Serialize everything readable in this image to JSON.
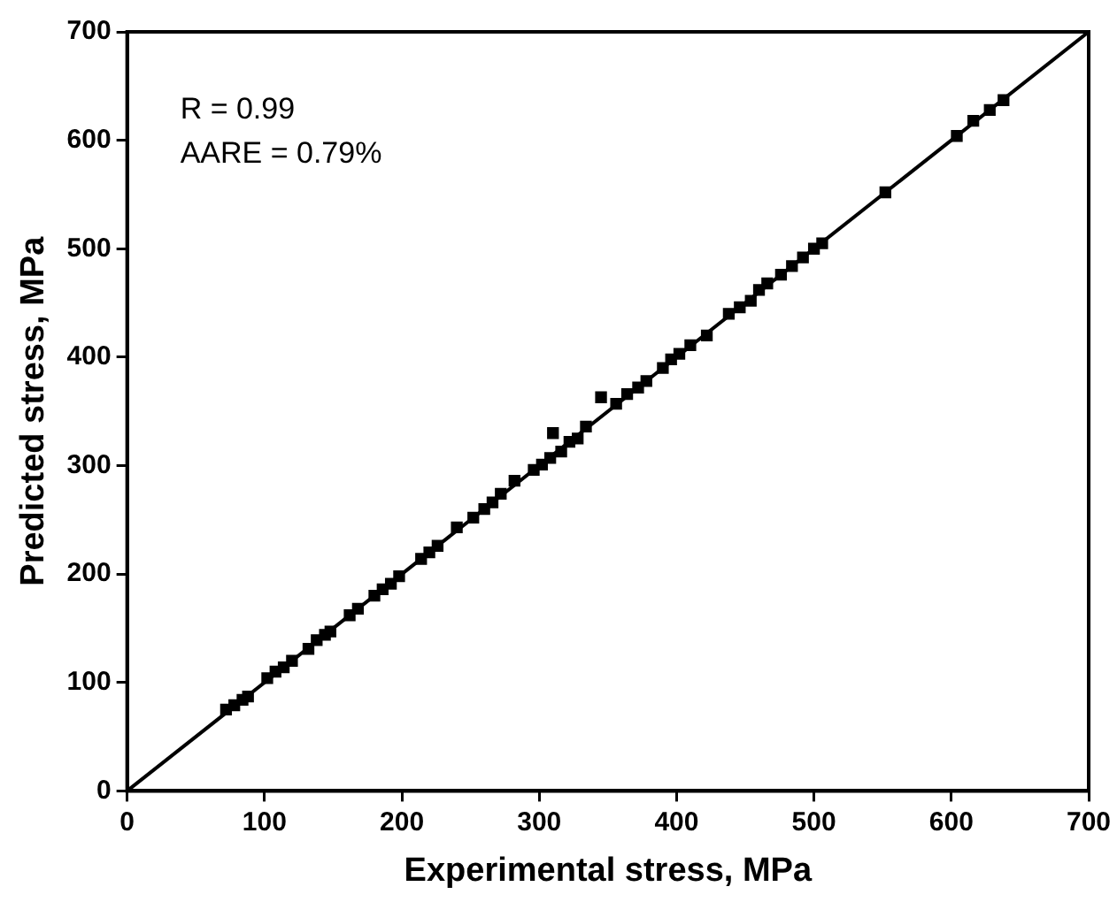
{
  "chart_data": {
    "type": "scatter",
    "xlabel": "Experimental stress, MPa",
    "ylabel": "Predicted stress, MPa",
    "xlim": [
      0,
      700
    ],
    "xticks": [
      0,
      100,
      200,
      300,
      400,
      500,
      600,
      700
    ],
    "ylim": [
      0,
      700
    ],
    "yticks": [
      0,
      100,
      200,
      300,
      400,
      500,
      600,
      700
    ],
    "grid": false,
    "legend": false,
    "marker": "square",
    "annotations": [
      "R = 0.99",
      "AARE = 0.79%"
    ],
    "series": [
      {
        "type": "scatter",
        "color": "#000000",
        "x": [
          72,
          78,
          84,
          88,
          102,
          108,
          114,
          120,
          132,
          138,
          144,
          148,
          162,
          168,
          180,
          186,
          192,
          198,
          214,
          220,
          226,
          240,
          252,
          260,
          266,
          272,
          282,
          296,
          302,
          308,
          310,
          316,
          322,
          328,
          334,
          345,
          356,
          364,
          372,
          378,
          390,
          396,
          402,
          410,
          422,
          438,
          446,
          454,
          460,
          466,
          476,
          484,
          492,
          500,
          506,
          552,
          604,
          616,
          628,
          638
        ],
        "values": [
          75,
          79,
          84,
          87,
          104,
          110,
          114,
          120,
          131,
          139,
          144,
          147,
          162,
          168,
          180,
          186,
          191,
          198,
          214,
          220,
          226,
          243,
          252,
          260,
          266,
          274,
          286,
          296,
          301,
          307,
          330,
          313,
          322,
          325,
          336,
          363,
          357,
          366,
          372,
          378,
          390,
          398,
          403,
          411,
          420,
          440,
          446,
          452,
          462,
          468,
          476,
          484,
          492,
          500,
          505,
          552,
          604,
          618,
          628,
          637
        ]
      },
      {
        "type": "line",
        "color": "#000000",
        "marker": "none",
        "x": [
          0,
          700
        ],
        "values": [
          0,
          700
        ]
      }
    ]
  }
}
